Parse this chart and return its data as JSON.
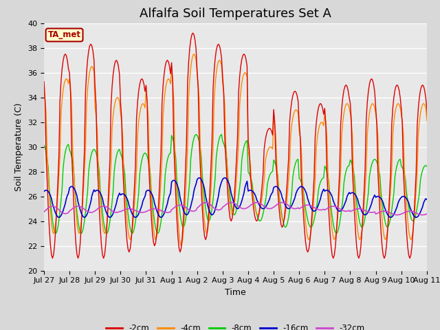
{
  "title": "Alfalfa Soil Temperatures Set A",
  "ylabel": "Soil Temperature (C)",
  "xlabel": "Time",
  "ylim": [
    20,
    40
  ],
  "bg_color": "#e8e8e8",
  "grid_color": "#ffffff",
  "series_colors": {
    "-2cm": "#dd0000",
    "-4cm": "#ff8800",
    "-8cm": "#00cc00",
    "-16cm": "#0000cc",
    "-32cm": "#cc44cc"
  },
  "legend_labels": [
    "-2cm",
    "-4cm",
    "-8cm",
    "-16cm",
    "-32cm"
  ],
  "annotation_text": "TA_met",
  "annotation_bg": "#ffffcc",
  "annotation_border": "#aa0000",
  "x_tick_labels": [
    "Jul 27",
    "Jul 28",
    "Jul 29",
    "Jul 30",
    "Jul 31",
    "Aug 1",
    "Aug 2",
    "Aug 3",
    "Aug 4",
    "Aug 5",
    "Aug 6",
    "Aug 7",
    "Aug 8",
    "Aug 9",
    "Aug 10",
    "Aug 11"
  ],
  "title_fontsize": 13,
  "label_fontsize": 9,
  "tick_fontsize": 8
}
